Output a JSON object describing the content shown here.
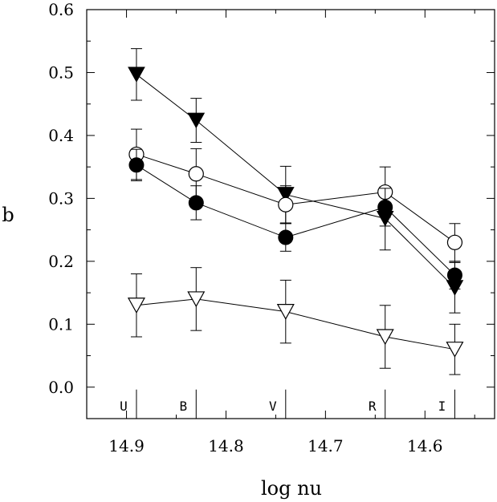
{
  "chart_data": {
    "type": "scatter",
    "xlabel": "log nu",
    "ylabel": "b",
    "xlim": [
      14.94,
      14.53
    ],
    "ylim": [
      -0.05,
      0.6
    ],
    "x_reversed": true,
    "grid": false,
    "xticks": [
      "14.9",
      "14.8",
      "14.7",
      "14.6"
    ],
    "yticks": [
      "0.0",
      "0.1",
      "0.2",
      "0.3",
      "0.4",
      "0.5",
      "0.6"
    ],
    "bands": [
      {
        "label": "U",
        "x": 14.89
      },
      {
        "label": "B",
        "x": 14.83
      },
      {
        "label": "V",
        "x": 14.74
      },
      {
        "label": "R",
        "x": 14.64
      },
      {
        "label": "I",
        "x": 14.57
      }
    ],
    "series": [
      {
        "marker": "filled-down-triangle",
        "x": [
          14.89,
          14.83,
          14.74,
          14.64,
          14.57
        ],
        "y": [
          0.497,
          0.424,
          0.306,
          0.268,
          0.158
        ],
        "err": [
          0.041,
          0.035,
          0.045,
          0.05,
          0.04
        ]
      },
      {
        "marker": "open-circle",
        "x": [
          14.89,
          14.83,
          14.74,
          14.64,
          14.57
        ],
        "y": [
          0.37,
          0.339,
          0.29,
          0.31,
          0.23
        ],
        "err": [
          0.04,
          0.04,
          0.03,
          0.04,
          0.03
        ]
      },
      {
        "marker": "filled-circle",
        "x": [
          14.89,
          14.83,
          14.74,
          14.64,
          14.57
        ],
        "y": [
          0.353,
          0.293,
          0.238,
          0.286,
          0.178
        ],
        "err": [
          0.025,
          0.027,
          0.022,
          0.03,
          0.022
        ]
      },
      {
        "marker": "open-down-triangle",
        "x": [
          14.89,
          14.83,
          14.74,
          14.64,
          14.57
        ],
        "y": [
          0.13,
          0.14,
          0.12,
          0.08,
          0.06
        ],
        "err": [
          0.05,
          0.05,
          0.05,
          0.05,
          0.04
        ]
      }
    ]
  }
}
